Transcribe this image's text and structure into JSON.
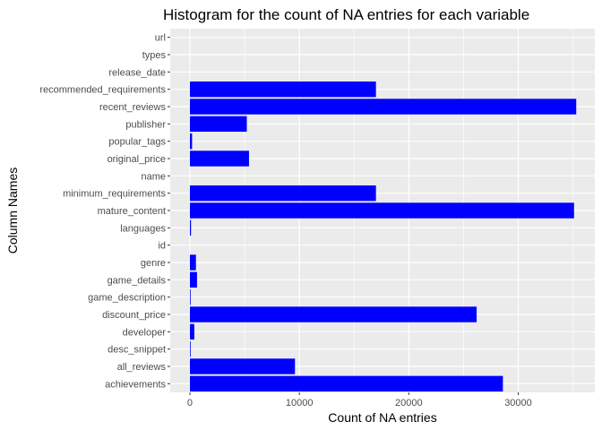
{
  "chart_data": {
    "type": "bar",
    "orientation": "horizontal",
    "title": "Histogram for the count of NA entries for each variable",
    "xlabel": "Count of NA entries",
    "ylabel": "Column Names",
    "xlim": [
      -1800,
      37000
    ],
    "xticks": [
      0,
      10000,
      20000,
      30000
    ],
    "xtick_labels": [
      "0",
      "10000",
      "20000",
      "30000"
    ],
    "grid": true,
    "legend": "none",
    "bar_color": "#0000ff",
    "panel_color": "#ebebeb",
    "categories": [
      "url",
      "types",
      "release_date",
      "recommended_requirements",
      "recent_reviews",
      "publisher",
      "popular_tags",
      "original_price",
      "name",
      "minimum_requirements",
      "mature_content",
      "languages",
      "id",
      "genre",
      "game_details",
      "game_description",
      "discount_price",
      "developer",
      "desc_snippet",
      "all_reviews",
      "achievements"
    ],
    "values": [
      0,
      0,
      0,
      17000,
      35300,
      5200,
      200,
      5400,
      0,
      17000,
      35100,
      100,
      0,
      550,
      650,
      50,
      26200,
      400,
      50,
      9600,
      28600
    ]
  }
}
